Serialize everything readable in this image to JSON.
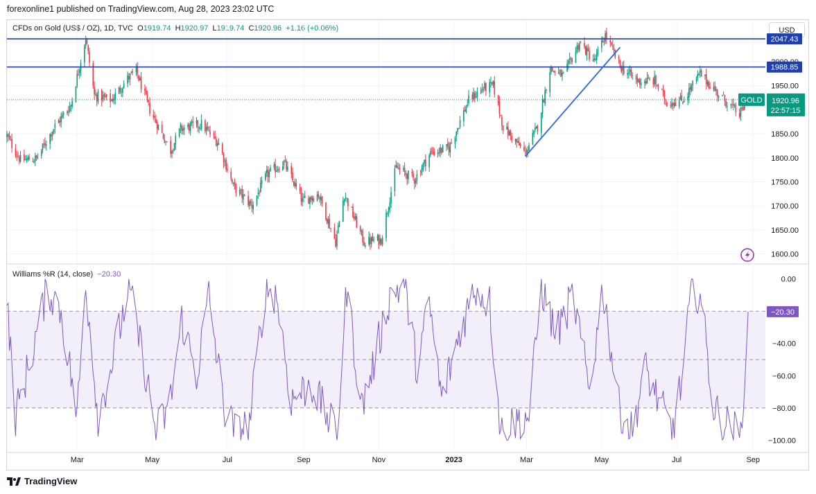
{
  "publisher": "forexonline1 published on TradingView.com, Aug 28, 2023 23:02 UTC",
  "legend": {
    "symbol": "CFDs on Gold (US$ / OZ), 1D, TVC",
    "o_label": "O",
    "o": "1919.74",
    "h_label": "H",
    "h": "1920.97",
    "l_label": "L",
    "l": "1919.74",
    "c_label": "C",
    "c": "1920.96",
    "change": "+1.16 (+0.06%)"
  },
  "currency_button": "USD",
  "indicator_legend": {
    "name": "Williams %R (14, close)",
    "value": "−20.30"
  },
  "footer_brand": "TradingView",
  "colors": {
    "up": "#089981",
    "down": "#f23645",
    "level_line": "#1e40af",
    "trend_line": "#2962ff",
    "williams": "#7e57c2",
    "band_fill": "#f3effa"
  },
  "chart_data": [
    {
      "type": "candlestick",
      "title": "CFDs on Gold (US$ / OZ), 1D, TVC",
      "x_tick_labels": [
        "Mar",
        "May",
        "Jul",
        "Sep",
        "Nov",
        "2023",
        "Mar",
        "May",
        "Jul",
        "Sep"
      ],
      "y_tick_labels": [
        "1600.00",
        "1650.00",
        "1700.00",
        "1750.00",
        "1800.00",
        "1850.00",
        "1950.00",
        "2000.00"
      ],
      "ylim": [
        1585,
        2085
      ],
      "horizontal_levels": [
        {
          "label": "2047.43",
          "value": 2047.43
        },
        {
          "label": "1988.85",
          "value": 1988.85
        }
      ],
      "last_price": {
        "ticker": "GOLD",
        "price": "1920.96",
        "countdown": "22:57:15",
        "value": 1920.96
      },
      "trend_line": {
        "from": {
          "date": "2023-02-28",
          "price": 1803
        },
        "to": {
          "date": "2023-05-16",
          "price": 2030
        }
      },
      "series": [
        {
          "name": "GOLD",
          "anchors": [
            [
              "2022-01-03",
              1845
            ],
            [
              "2022-01-14",
              1795
            ],
            [
              "2022-01-27",
              1798
            ],
            [
              "2022-02-10",
              1862
            ],
            [
              "2022-02-24",
              1910
            ],
            [
              "2022-03-08",
              2050
            ],
            [
              "2022-03-15",
              1930
            ],
            [
              "2022-03-29",
              1920
            ],
            [
              "2022-04-11",
              1965
            ],
            [
              "2022-04-18",
              1980
            ],
            [
              "2022-04-29",
              1900
            ],
            [
              "2022-05-16",
              1815
            ],
            [
              "2022-05-24",
              1860
            ],
            [
              "2022-06-10",
              1870
            ],
            [
              "2022-06-24",
              1830
            ],
            [
              "2022-07-06",
              1740
            ],
            [
              "2022-07-21",
              1700
            ],
            [
              "2022-08-02",
              1765
            ],
            [
              "2022-08-16",
              1790
            ],
            [
              "2022-08-31",
              1710
            ],
            [
              "2022-09-13",
              1725
            ],
            [
              "2022-09-27",
              1625
            ],
            [
              "2022-10-04",
              1725
            ],
            [
              "2022-10-20",
              1625
            ],
            [
              "2022-11-03",
              1630
            ],
            [
              "2022-11-15",
              1780
            ],
            [
              "2022-11-30",
              1755
            ],
            [
              "2022-12-13",
              1810
            ],
            [
              "2022-12-28",
              1820
            ],
            [
              "2023-01-13",
              1920
            ],
            [
              "2023-01-25",
              1945
            ],
            [
              "2023-02-02",
              1950
            ],
            [
              "2023-02-10",
              1865
            ],
            [
              "2023-02-28",
              1810
            ],
            [
              "2023-03-10",
              1865
            ],
            [
              "2023-03-20",
              1985
            ],
            [
              "2023-03-31",
              1970
            ],
            [
              "2023-04-13",
              2040
            ],
            [
              "2023-04-25",
              2000
            ],
            [
              "2023-05-04",
              2055
            ],
            [
              "2023-05-16",
              1990
            ],
            [
              "2023-05-30",
              1960
            ],
            [
              "2023-06-13",
              1960
            ],
            [
              "2023-06-23",
              1915
            ],
            [
              "2023-07-06",
              1920
            ],
            [
              "2023-07-20",
              1975
            ],
            [
              "2023-08-03",
              1935
            ],
            [
              "2023-08-21",
              1890
            ],
            [
              "2023-08-28",
              1920.96
            ]
          ]
        }
      ]
    },
    {
      "type": "line",
      "title": "Williams %R (14, close)",
      "y_tick_labels": [
        "0.00",
        "−40.00",
        "−60.00",
        "−80.00",
        "−100.00"
      ],
      "ylim": [
        -102,
        2
      ],
      "reference_levels": [
        -20,
        -50,
        -80
      ],
      "last_value": {
        "label": "−20.30",
        "value": -20.3
      },
      "series": [
        {
          "name": "Williams %R",
          "anchors": [
            [
              "2022-01-03",
              -15
            ],
            [
              "2022-01-10",
              -85
            ],
            [
              "2022-01-22",
              -50
            ],
            [
              "2022-02-05",
              -5
            ],
            [
              "2022-02-16",
              -20
            ],
            [
              "2022-03-01",
              -85
            ],
            [
              "2022-03-08",
              -2
            ],
            [
              "2022-03-18",
              -85
            ],
            [
              "2022-03-30",
              -50
            ],
            [
              "2022-04-12",
              -5
            ],
            [
              "2022-04-25",
              -55
            ],
            [
              "2022-05-04",
              -95
            ],
            [
              "2022-05-15",
              -80
            ],
            [
              "2022-05-25",
              -25
            ],
            [
              "2022-06-06",
              -60
            ],
            [
              "2022-06-16",
              -10
            ],
            [
              "2022-06-28",
              -80
            ],
            [
              "2022-07-08",
              -95
            ],
            [
              "2022-07-19",
              -90
            ],
            [
              "2022-08-01",
              -5
            ],
            [
              "2022-08-10",
              -10
            ],
            [
              "2022-08-22",
              -75
            ],
            [
              "2022-09-07",
              -65
            ],
            [
              "2022-09-20",
              -85
            ],
            [
              "2022-09-28",
              -98
            ],
            [
              "2022-10-06",
              -5
            ],
            [
              "2022-10-18",
              -80
            ],
            [
              "2022-10-27",
              -55
            ],
            [
              "2022-11-10",
              -10
            ],
            [
              "2022-11-22",
              -3
            ],
            [
              "2022-12-02",
              -55
            ],
            [
              "2022-12-12",
              -15
            ],
            [
              "2022-12-22",
              -75
            ],
            [
              "2023-01-05",
              -35
            ],
            [
              "2023-01-18",
              -5
            ],
            [
              "2023-01-30",
              -15
            ],
            [
              "2023-02-08",
              -95
            ],
            [
              "2023-02-20",
              -88
            ],
            [
              "2023-03-03",
              -85
            ],
            [
              "2023-03-13",
              -5
            ],
            [
              "2023-03-25",
              -35
            ],
            [
              "2023-04-08",
              -10
            ],
            [
              "2023-04-21",
              -70
            ],
            [
              "2023-05-02",
              -5
            ],
            [
              "2023-05-15",
              -80
            ],
            [
              "2023-05-26",
              -95
            ],
            [
              "2023-06-05",
              -55
            ],
            [
              "2023-06-16",
              -75
            ],
            [
              "2023-06-27",
              -95
            ],
            [
              "2023-07-06",
              -60
            ],
            [
              "2023-07-13",
              -5
            ],
            [
              "2023-07-20",
              -10
            ],
            [
              "2023-07-31",
              -80
            ],
            [
              "2023-08-10",
              -90
            ],
            [
              "2023-08-22",
              -97
            ],
            [
              "2023-08-28",
              -20.3
            ]
          ]
        }
      ]
    }
  ]
}
